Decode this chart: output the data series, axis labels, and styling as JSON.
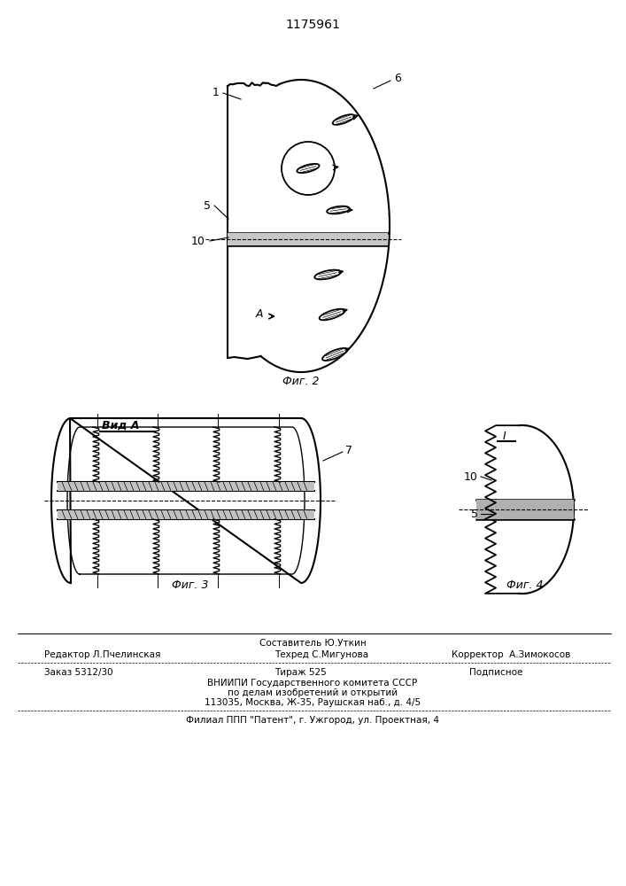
{
  "title": "1175961",
  "bg_color": "#ffffff",
  "line_color": "#000000",
  "fig2_caption": "Фиг. 2",
  "fig3_caption": "Фиг. 3",
  "fig4_caption": "Фиг. 4",
  "vida_label": "Вид А",
  "footer_line1_top": "Составитель Ю.Уткин",
  "footer_line1_left": "Редактор Л.Пчелинская",
  "footer_line1_center": "Техред С.Мигунова",
  "footer_line1_right": "Корректор  А.Зимокосов",
  "footer_line2_left": "Заказ 5312/30",
  "footer_line2_center": "Тираж 525",
  "footer_line2_right": "Подписное",
  "footer_line3": "ВНИИПИ Государственного комитета СССР",
  "footer_line4": "по делам изобретений и открытий",
  "footer_line5": "113035, Москва, Ж-35, Раушская наб., д. 4/5",
  "footer_line6": "Филиал ППП \"Патент\", г. Ужгород, ул. Проектная, 4"
}
